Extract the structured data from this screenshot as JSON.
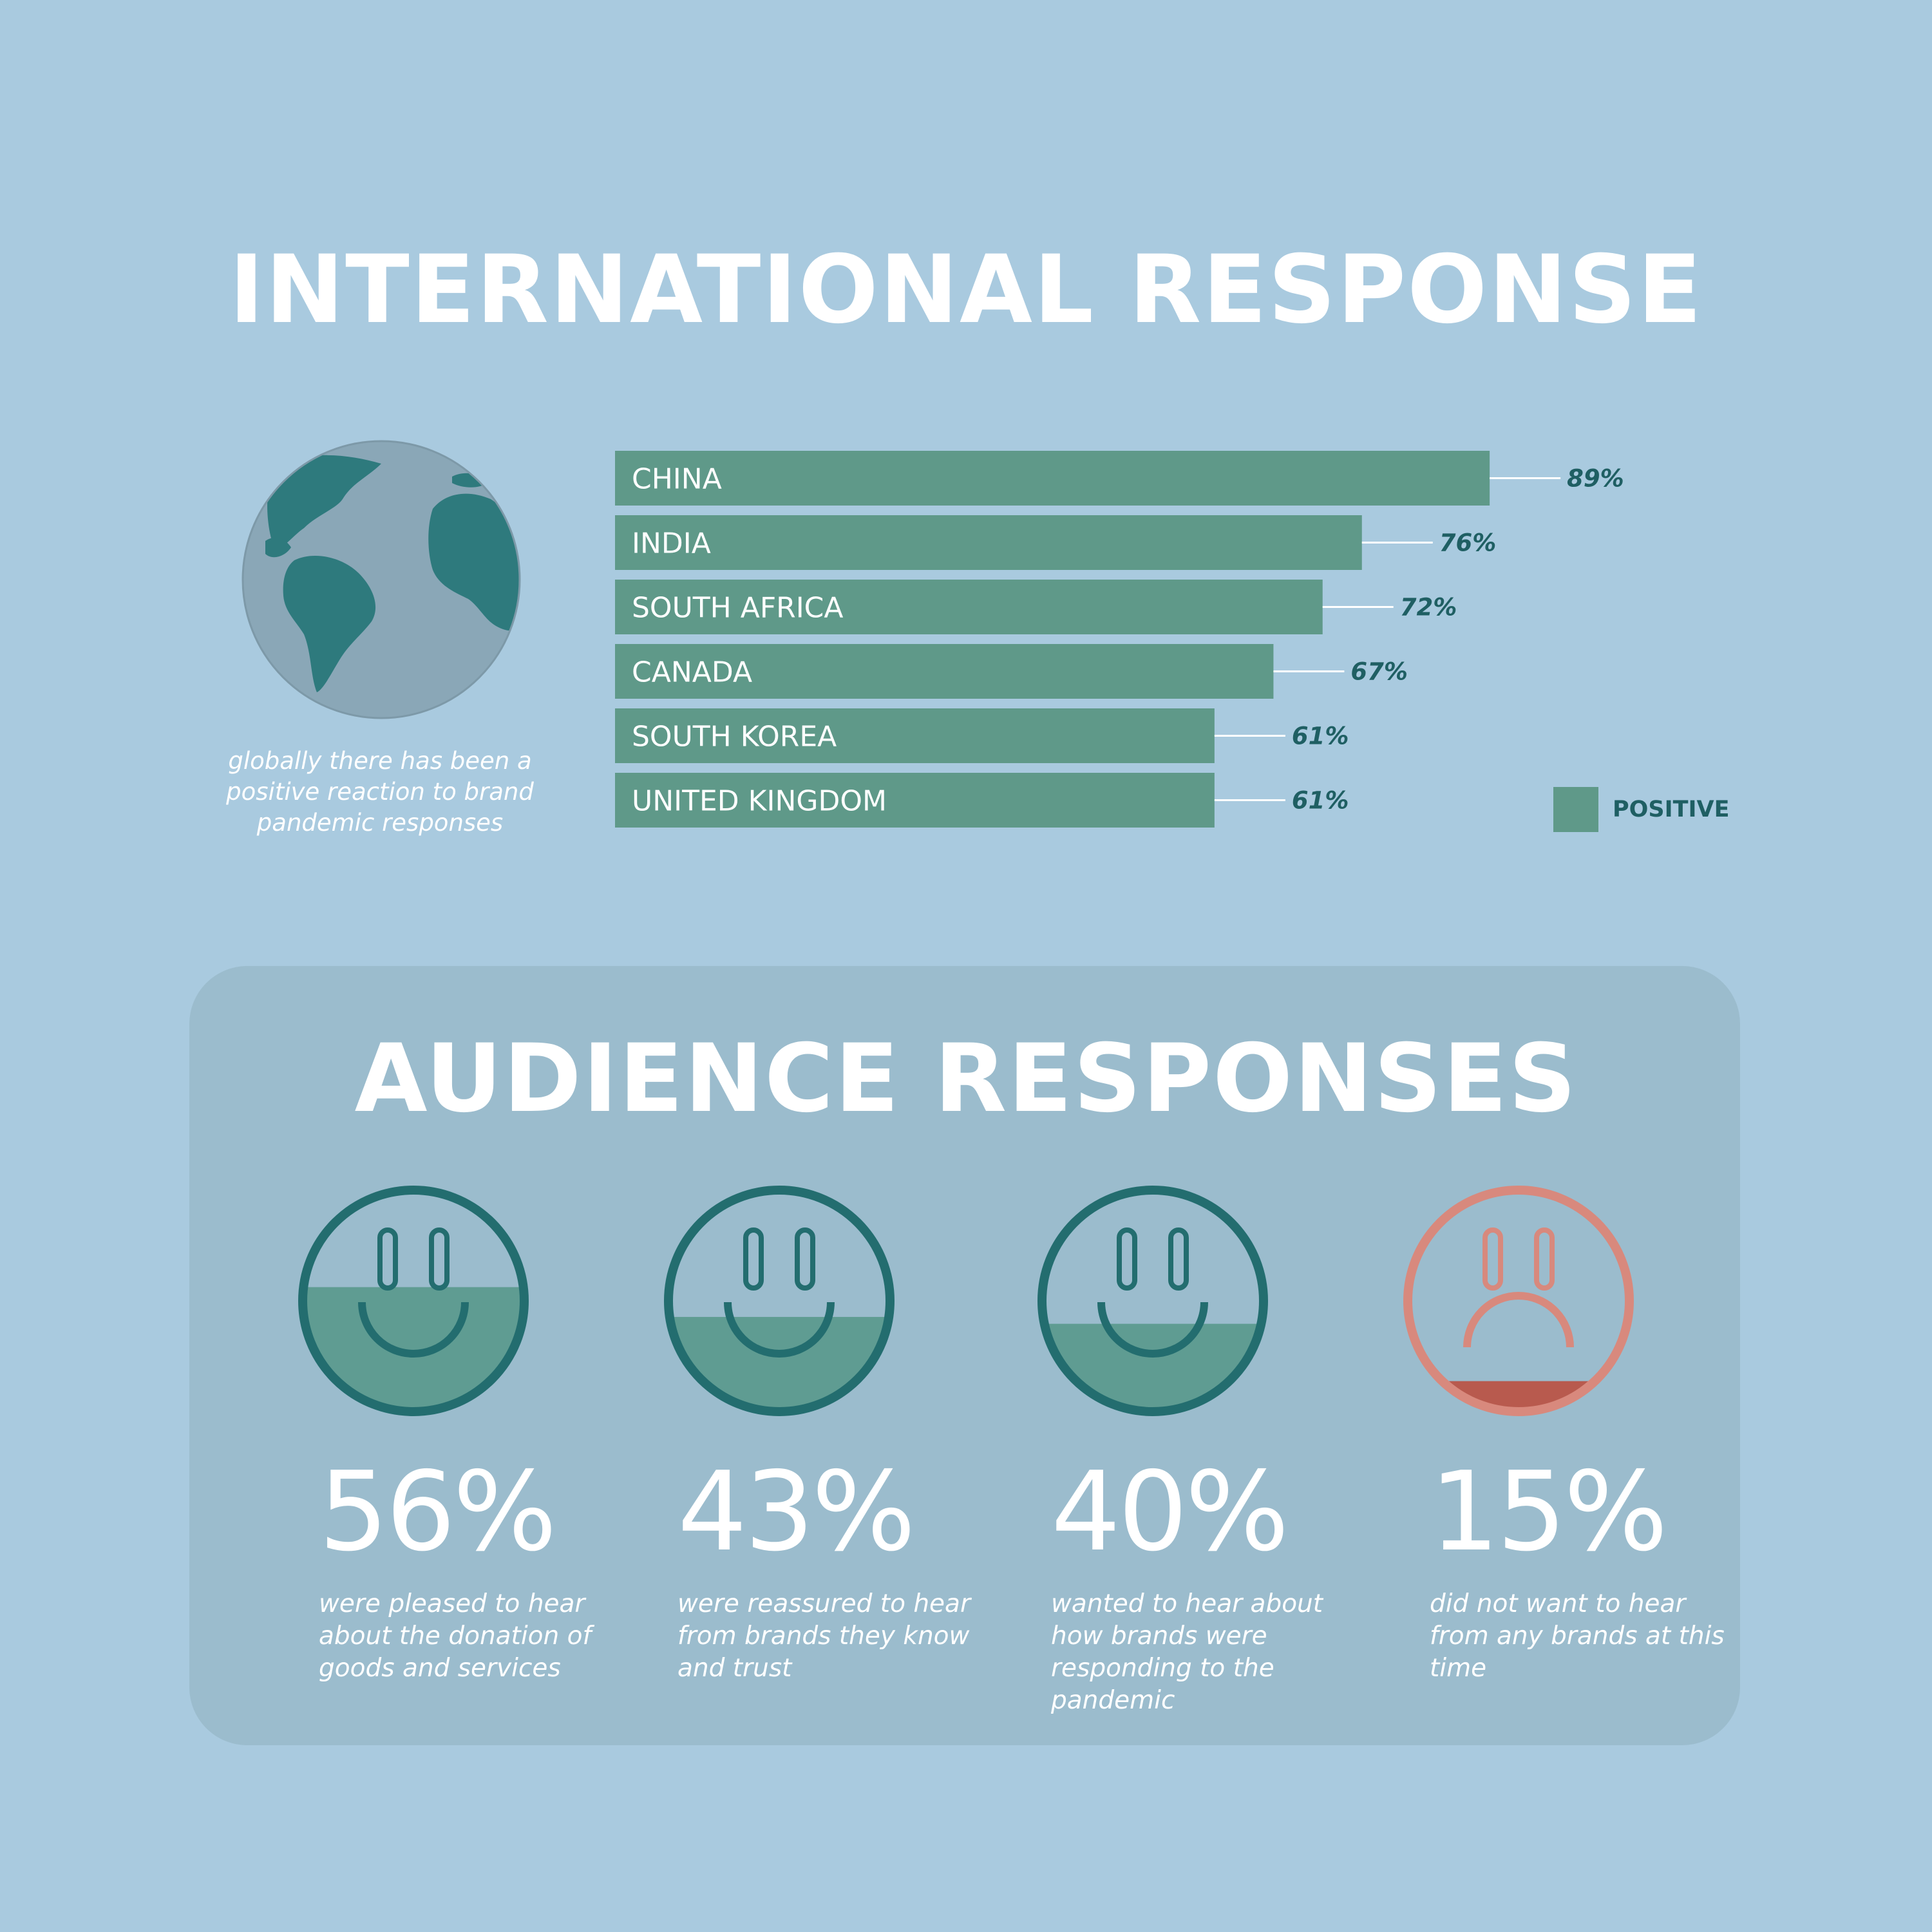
{
  "international": {
    "title": "INTERNATIONAL RESPONSE",
    "globe_caption": "globally there has been a positive reaction to brand pandemic responses",
    "legend_label": "POSITIVE"
  },
  "audience": {
    "title": "AUDIENCE RESPONSES",
    "stats": [
      {
        "value": "56%",
        "fill": 0.56,
        "mood": "happy",
        "description": "were pleased to hear about the donation of goods and services"
      },
      {
        "value": "43%",
        "fill": 0.43,
        "mood": "happy",
        "description": "were reassured to hear from brands they know and trust"
      },
      {
        "value": "40%",
        "fill": 0.4,
        "mood": "happy",
        "description": "wanted to hear about how brands were responding to the pandemic"
      },
      {
        "value": "15%",
        "fill": 0.15,
        "mood": "sad",
        "description": "did not want to hear from any brands at this time"
      }
    ]
  },
  "colors": {
    "background": "#a9cadf",
    "bar": "#5f9989",
    "dark_teal": "#236d6f",
    "sad": "#d8897d",
    "panel": "#9bbccd"
  },
  "icons": [
    "globe-icon",
    "smiley-icon",
    "sad-face-icon"
  ],
  "chart_data": {
    "type": "bar",
    "orientation": "horizontal",
    "title": "INTERNATIONAL RESPONSE",
    "categories": [
      "CHINA",
      "INDIA",
      "SOUTH AFRICA",
      "CANADA",
      "SOUTH KOREA",
      "UNITED KINGDOM"
    ],
    "series": [
      {
        "name": "POSITIVE",
        "values": [
          89,
          76,
          72,
          67,
          61,
          61
        ]
      }
    ],
    "value_labels": [
      "89%",
      "76%",
      "72%",
      "67%",
      "61%",
      "61%"
    ],
    "xlim": [
      0,
      100
    ],
    "grid": false,
    "legend": "bottom-right"
  }
}
